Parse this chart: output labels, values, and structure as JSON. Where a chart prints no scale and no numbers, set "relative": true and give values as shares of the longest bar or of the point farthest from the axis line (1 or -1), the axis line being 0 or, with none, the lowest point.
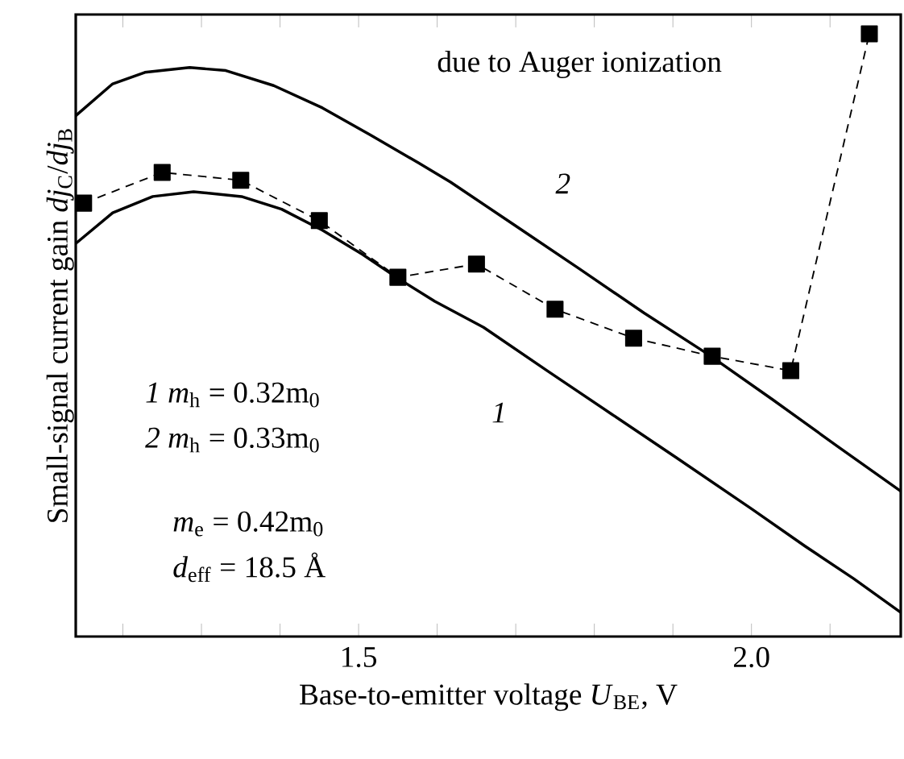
{
  "chart_data": {
    "type": "line",
    "relative": true,
    "xlabel": "Base-to-emitter voltage *U*$_{BE}$, V",
    "ylabel": "Small-signal current gain *dj*$_{C}$/*dj*$_{B}$",
    "xlim": [
      1.14,
      2.19
    ],
    "xticks": [
      {
        "value": 1.2,
        "label": null
      },
      {
        "value": 1.3,
        "label": null
      },
      {
        "value": 1.4,
        "label": null
      },
      1.5,
      {
        "value": 1.6,
        "label": null
      },
      {
        "value": 1.7,
        "label": null
      },
      {
        "value": 1.8,
        "label": null
      },
      {
        "value": 1.9,
        "label": null
      },
      {
        "value": 2.0,
        "label": "2.0"
      },
      {
        "value": 2.1,
        "label": null
      }
    ],
    "annotations": [
      "due to Auger ionization",
      "*1*  *m*$_{h}$ = 0.32m$_{0}$",
      "*2*  *m*$_{h}$ = 0.33m$_{0}$",
      "*m*$_{e}$ = 0.42m$_{0}$",
      "*d*$_{eff}$ = 18.5 Å"
    ],
    "series": [
      {
        "name": "1",
        "color": "#000000",
        "marker": "none",
        "line_style": "solid",
        "x": [
          1.14,
          1.187,
          1.238,
          1.29,
          1.351,
          1.402,
          1.454,
          1.505,
          1.548,
          1.597,
          1.659,
          1.74,
          1.822,
          1.904,
          2.001,
          2.068,
          2.13,
          2.19
        ],
        "values": [
          0.652,
          0.703,
          0.73,
          0.738,
          0.73,
          0.709,
          0.674,
          0.634,
          0.596,
          0.556,
          0.513,
          0.441,
          0.369,
          0.297,
          0.211,
          0.15,
          0.096,
          0.04
        ]
      },
      {
        "name": "2",
        "color": "#000000",
        "marker": "none",
        "line_style": "solid",
        "x": [
          1.14,
          1.187,
          1.228,
          1.285,
          1.331,
          1.392,
          1.454,
          1.515,
          1.576,
          1.617,
          1.699,
          1.781,
          1.863,
          1.945,
          2.027,
          2.109,
          2.19
        ],
        "values": [
          0.864,
          0.917,
          0.936,
          0.944,
          0.939,
          0.914,
          0.877,
          0.832,
          0.786,
          0.754,
          0.682,
          0.61,
          0.537,
          0.468,
          0.393,
          0.316,
          0.241
        ]
      },
      {
        "color": "#000000",
        "marker": "square",
        "line_style": "dashed",
        "x": [
          1.15,
          1.25,
          1.35,
          1.45,
          1.55,
          1.65,
          1.75,
          1.85,
          1.95,
          2.05,
          2.15
        ],
        "values": [
          0.719,
          0.77,
          0.757,
          0.69,
          0.596,
          0.618,
          0.543,
          0.495,
          0.465,
          0.441,
          1.0
        ]
      }
    ]
  }
}
